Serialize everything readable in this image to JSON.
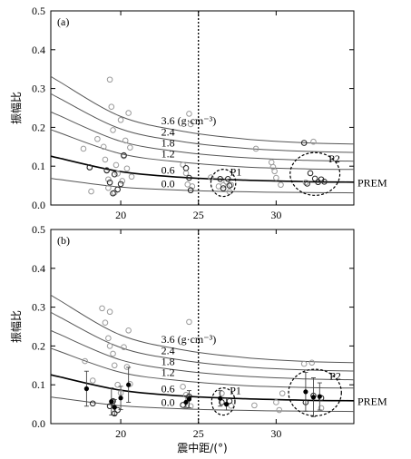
{
  "figure": {
    "ylabel": "振幅比",
    "xlabel": "震中距/(°)"
  },
  "chart_data": [
    {
      "type": "scatter",
      "panel": "(a)",
      "xlim": [
        15.5,
        35
      ],
      "ylim": [
        0,
        0.5
      ],
      "xticks": [
        20,
        25,
        30
      ],
      "yticks": [
        0.0,
        0.1,
        0.2,
        0.3,
        0.4,
        0.5
      ],
      "ylabel": "振幅比",
      "vline_x": 25,
      "curves": [
        {
          "label": "3.6 (g·cm⁻³)",
          "bold": false,
          "values": [
            0.319,
            0.228,
            0.19,
            0.17,
            0.16
          ]
        },
        {
          "label": "2.4",
          "bold": false,
          "values": [
            0.276,
            0.196,
            0.163,
            0.146,
            0.138
          ]
        },
        {
          "label": "1.8",
          "bold": false,
          "values": [
            0.231,
            0.164,
            0.136,
            0.122,
            0.115
          ]
        },
        {
          "label": "1.2",
          "bold": false,
          "values": [
            0.187,
            0.132,
            0.11,
            0.098,
            0.093
          ]
        },
        {
          "label": "0.6",
          "bold": true,
          "values": [
            0.121,
            0.086,
            0.071,
            0.064,
            0.06
          ]
        },
        {
          "label": "0.0",
          "bold": false,
          "values": [
            0.066,
            0.046,
            0.038,
            0.034,
            0.032
          ]
        }
      ],
      "curve_x": [
        16,
        20,
        24,
        28,
        32
      ],
      "prem_label": "PREM",
      "gray_points": [
        [
          17.6,
          0.145
        ],
        [
          18.0,
          0.097
        ],
        [
          18.1,
          0.035
        ],
        [
          18.5,
          0.17
        ],
        [
          18.9,
          0.15
        ],
        [
          19.0,
          0.117
        ],
        [
          19.1,
          0.09
        ],
        [
          19.2,
          0.066
        ],
        [
          19.2,
          0.044
        ],
        [
          19.3,
          0.323
        ],
        [
          19.4,
          0.253
        ],
        [
          19.5,
          0.193
        ],
        [
          19.6,
          0.032
        ],
        [
          19.7,
          0.103
        ],
        [
          19.8,
          0.081
        ],
        [
          20.0,
          0.219
        ],
        [
          20.1,
          0.062
        ],
        [
          20.2,
          0.126
        ],
        [
          20.3,
          0.166
        ],
        [
          20.4,
          0.094
        ],
        [
          20.5,
          0.237
        ],
        [
          20.6,
          0.148
        ],
        [
          20.7,
          0.073
        ],
        [
          24.0,
          0.104
        ],
        [
          24.2,
          0.082
        ],
        [
          24.3,
          0.053
        ],
        [
          24.4,
          0.235
        ],
        [
          24.5,
          0.208
        ],
        [
          24.6,
          0.048
        ],
        [
          25.8,
          0.071
        ],
        [
          26.3,
          0.048
        ],
        [
          26.6,
          0.051
        ],
        [
          26.8,
          0.06
        ],
        [
          27.0,
          0.034
        ],
        [
          27.1,
          0.052
        ],
        [
          28.7,
          0.145
        ],
        [
          29.7,
          0.11
        ],
        [
          29.8,
          0.098
        ],
        [
          29.9,
          0.087
        ],
        [
          30.0,
          0.07
        ],
        [
          30.3,
          0.052
        ],
        [
          31.9,
          0.058
        ],
        [
          32.4,
          0.163
        ]
      ],
      "dark_points": [
        [
          18.0,
          0.097
        ],
        [
          19.1,
          0.089
        ],
        [
          19.3,
          0.058
        ],
        [
          19.5,
          0.03
        ],
        [
          19.6,
          0.079
        ],
        [
          19.8,
          0.04
        ],
        [
          20.0,
          0.054
        ],
        [
          20.2,
          0.128
        ],
        [
          24.2,
          0.095
        ],
        [
          24.4,
          0.07
        ],
        [
          24.5,
          0.038
        ],
        [
          26.4,
          0.067
        ],
        [
          26.6,
          0.043
        ],
        [
          26.9,
          0.067
        ],
        [
          27.0,
          0.05
        ],
        [
          31.8,
          0.16
        ],
        [
          32.0,
          0.055
        ],
        [
          32.2,
          0.082
        ],
        [
          32.5,
          0.068
        ],
        [
          32.7,
          0.059
        ],
        [
          32.9,
          0.066
        ],
        [
          33.1,
          0.06
        ]
      ],
      "ellipses": [
        {
          "label": "P1",
          "cx": 26.6,
          "cy": 0.057,
          "rx": 0.8,
          "ry": 0.035
        },
        {
          "label": "P2",
          "cx": 32.5,
          "cy": 0.08,
          "rx": 1.6,
          "ry": 0.055
        }
      ]
    },
    {
      "type": "scatter",
      "panel": "(b)",
      "xlim": [
        15.5,
        35
      ],
      "ylim": [
        0,
        0.5
      ],
      "xticks": [
        20,
        25,
        30
      ],
      "yticks": [
        0.0,
        0.1,
        0.2,
        0.3,
        0.4,
        0.5
      ],
      "ylabel": "振幅比",
      "xlabel": "震中距/(°)",
      "vline_x": 25,
      "curves": [
        {
          "label": "3.6 (g·cm⁻³)",
          "bold": false,
          "values": [
            0.319,
            0.228,
            0.19,
            0.17,
            0.16
          ]
        },
        {
          "label": "2.4",
          "bold": false,
          "values": [
            0.276,
            0.196,
            0.163,
            0.146,
            0.138
          ]
        },
        {
          "label": "1.8",
          "bold": false,
          "values": [
            0.231,
            0.164,
            0.136,
            0.122,
            0.115
          ]
        },
        {
          "label": "1.2",
          "bold": false,
          "values": [
            0.187,
            0.132,
            0.11,
            0.098,
            0.093
          ]
        },
        {
          "label": "0.6",
          "bold": true,
          "values": [
            0.121,
            0.086,
            0.071,
            0.064,
            0.06
          ]
        },
        {
          "label": "0.0",
          "bold": false,
          "values": [
            0.066,
            0.046,
            0.038,
            0.034,
            0.032
          ]
        }
      ],
      "curve_x": [
        16,
        20,
        24,
        28,
        32
      ],
      "prem_label": "PREM",
      "gray_points": [
        [
          17.7,
          0.161
        ],
        [
          18.2,
          0.111
        ],
        [
          18.8,
          0.297
        ],
        [
          19.0,
          0.26
        ],
        [
          19.2,
          0.22
        ],
        [
          19.3,
          0.2
        ],
        [
          19.3,
          0.288
        ],
        [
          19.5,
          0.18
        ],
        [
          19.6,
          0.15
        ],
        [
          19.8,
          0.1
        ],
        [
          20.0,
          0.079
        ],
        [
          20.2,
          0.197
        ],
        [
          20.4,
          0.146
        ],
        [
          20.5,
          0.24
        ],
        [
          20.6,
          0.102
        ],
        [
          24.0,
          0.095
        ],
        [
          24.2,
          0.074
        ],
        [
          24.4,
          0.262
        ],
        [
          24.5,
          0.045
        ],
        [
          26.5,
          0.078
        ],
        [
          27.1,
          0.046
        ],
        [
          28.6,
          0.047
        ],
        [
          30.0,
          0.055
        ],
        [
          30.2,
          0.035
        ],
        [
          30.4,
          0.078
        ],
        [
          31.8,
          0.154
        ],
        [
          32.3,
          0.157
        ],
        [
          32.9,
          0.04
        ]
      ],
      "dark_points": [
        [
          18.2,
          0.052
        ],
        [
          19.3,
          0.045
        ],
        [
          19.5,
          0.058
        ],
        [
          19.6,
          0.026
        ],
        [
          19.8,
          0.035
        ],
        [
          24.0,
          0.048
        ],
        [
          24.4,
          0.07
        ],
        [
          26.5,
          0.055
        ],
        [
          27.0,
          0.058
        ],
        [
          31.9,
          0.055
        ],
        [
          32.4,
          0.072
        ],
        [
          32.9,
          0.066
        ]
      ],
      "means": [
        {
          "x": 17.8,
          "y": 0.09,
          "err": 0.045
        },
        {
          "x": 19.4,
          "y": 0.057,
          "err": 0.035
        },
        {
          "x": 19.6,
          "y": 0.042,
          "err": 0.02
        },
        {
          "x": 20.0,
          "y": 0.066,
          "err": 0.03
        },
        {
          "x": 20.5,
          "y": 0.1,
          "err": 0.045
        },
        {
          "x": 24.2,
          "y": 0.055,
          "err": 0.015
        },
        {
          "x": 24.4,
          "y": 0.063,
          "err": 0.022
        },
        {
          "x": 26.4,
          "y": 0.065,
          "err": 0.02
        },
        {
          "x": 26.8,
          "y": 0.05,
          "err": 0.015
        },
        {
          "x": 31.9,
          "y": 0.082,
          "err": 0.05
        },
        {
          "x": 32.4,
          "y": 0.068,
          "err": 0.05
        },
        {
          "x": 32.8,
          "y": 0.07,
          "err": 0.035
        }
      ],
      "ellipses": [
        {
          "label": "P1",
          "cx": 26.6,
          "cy": 0.057,
          "rx": 0.75,
          "ry": 0.035
        },
        {
          "label": "P2",
          "cx": 32.5,
          "cy": 0.08,
          "rx": 1.7,
          "ry": 0.06
        }
      ]
    }
  ]
}
